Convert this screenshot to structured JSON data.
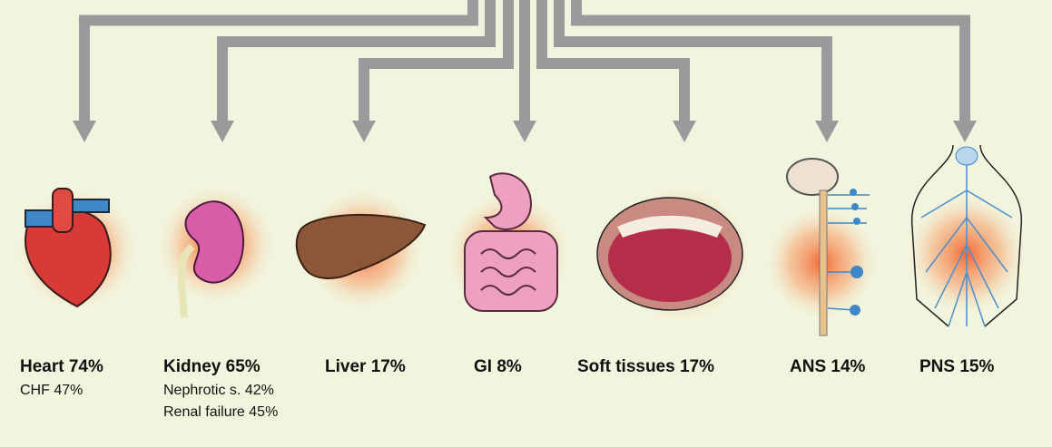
{
  "colors": {
    "background": "#f2f5de",
    "arrow": "#999a9c",
    "glow": "#f47a3c"
  },
  "organs": [
    {
      "id": "heart",
      "title": "Heart 74%",
      "sub": [
        "CHF 47%"
      ]
    },
    {
      "id": "kidney",
      "title": "Kidney 65%",
      "sub": [
        "Nephrotic s. 42%",
        "Renal failure 45%"
      ]
    },
    {
      "id": "liver",
      "title": "Liver 17%",
      "sub": []
    },
    {
      "id": "gi",
      "title": "GI 8%",
      "sub": []
    },
    {
      "id": "soft-tissues",
      "title": "Soft tissues 17%",
      "sub": []
    },
    {
      "id": "ans",
      "title": "ANS 14%",
      "sub": []
    },
    {
      "id": "pns",
      "title": "PNS 15%",
      "sub": []
    }
  ]
}
